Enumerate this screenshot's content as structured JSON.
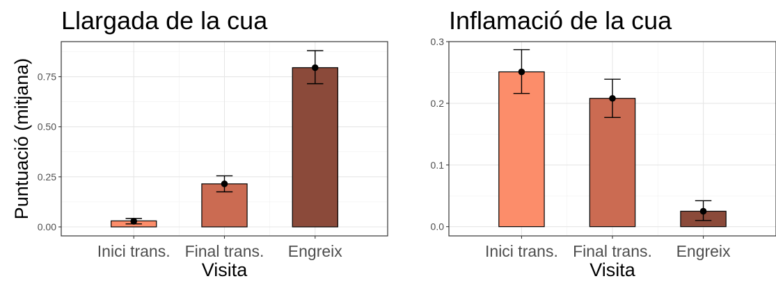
{
  "chart_data": [
    {
      "type": "bar",
      "title": "Llargada de la cua",
      "xlabel": "Visita",
      "ylabel": "Puntuació (mitjana)",
      "categories": [
        "Inici trans.",
        "Final trans.",
        "Engreix"
      ],
      "values": [
        0.03,
        0.215,
        0.795
      ],
      "points": [
        0.028,
        0.215,
        0.795
      ],
      "error_low": [
        0.015,
        0.175,
        0.715
      ],
      "error_high": [
        0.042,
        0.255,
        0.88
      ],
      "colors": [
        "#FC8D6A",
        "#CB6B52",
        "#8B4A3A"
      ],
      "yticks": [
        0.0,
        0.25,
        0.5,
        0.75
      ],
      "ytick_labels": [
        "0.00",
        "0.25",
        "0.50",
        "0.75"
      ],
      "ylim": [
        -0.045,
        0.925
      ],
      "grid": true
    },
    {
      "type": "bar",
      "title": "Inflamació de la cua",
      "xlabel": "Visita",
      "ylabel": "",
      "categories": [
        "Inici trans.",
        "Final trans.",
        "Engreix"
      ],
      "values": [
        0.251,
        0.208,
        0.025
      ],
      "points": [
        0.251,
        0.208,
        0.025
      ],
      "error_low": [
        0.216,
        0.177,
        0.01
      ],
      "error_high": [
        0.287,
        0.239,
        0.042
      ],
      "colors": [
        "#FC8D6A",
        "#CB6B52",
        "#8B4A3A"
      ],
      "yticks": [
        0.0,
        0.1,
        0.2,
        0.3
      ],
      "ytick_labels": [
        "0.0",
        "0.1",
        "0.2",
        "0.3"
      ],
      "ylim": [
        -0.015,
        0.3
      ],
      "grid": true
    }
  ]
}
